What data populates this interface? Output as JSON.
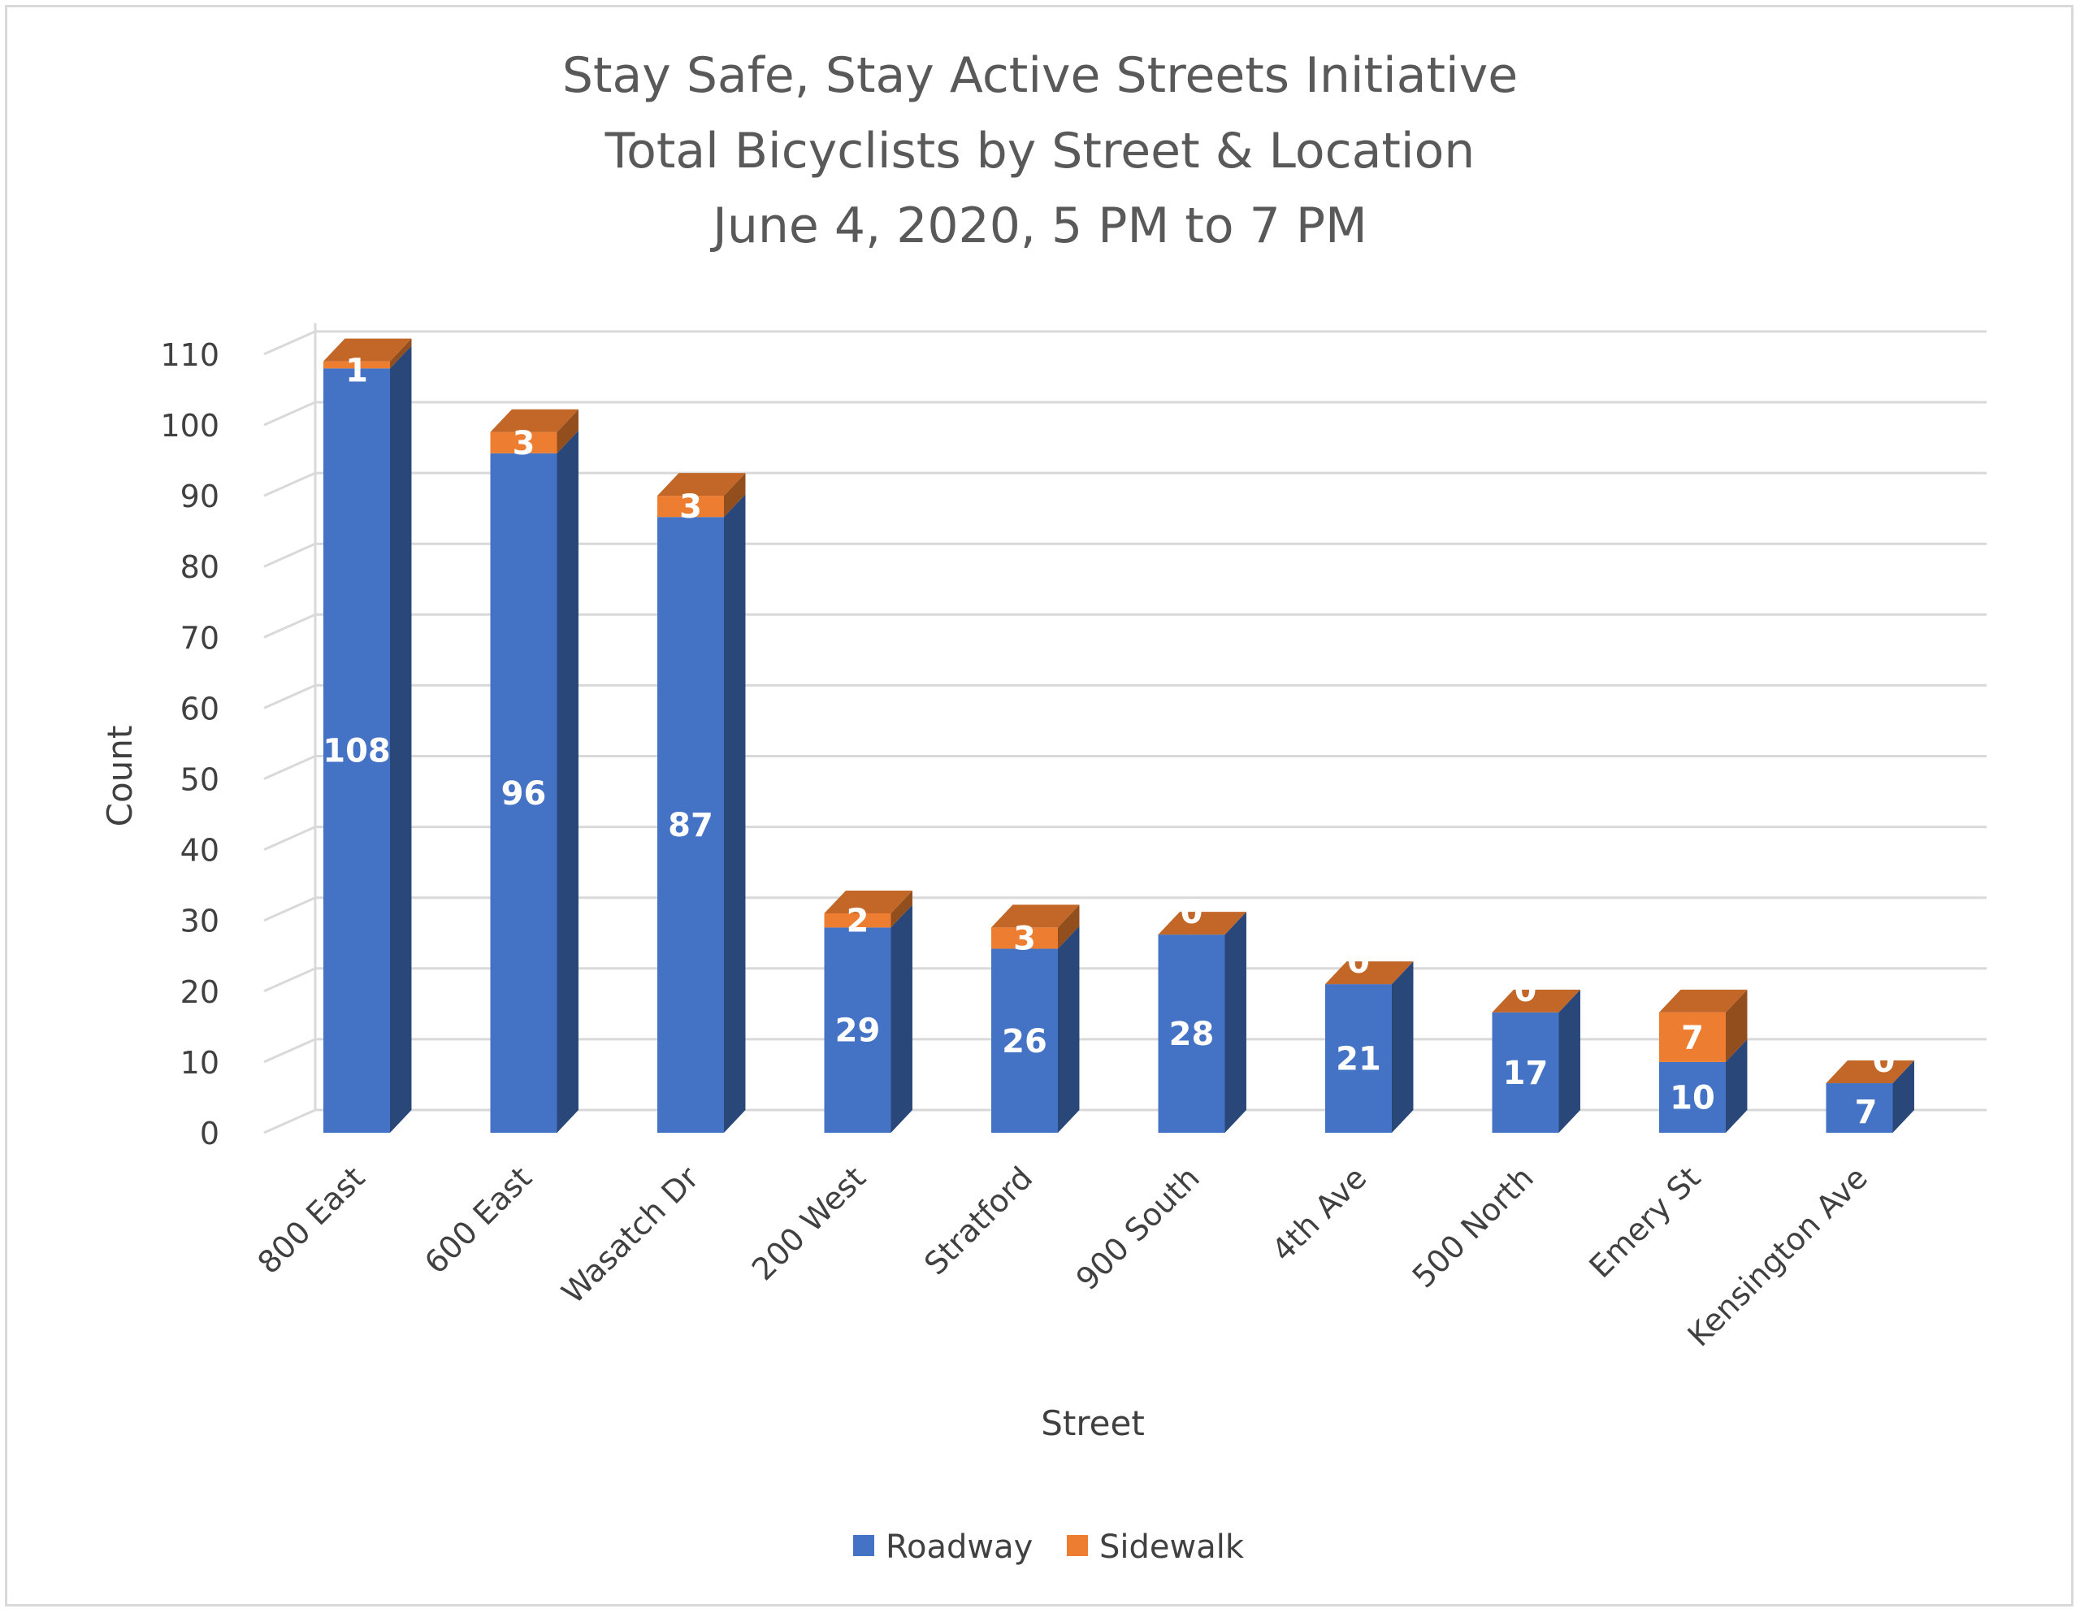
{
  "chart_data": {
    "type": "bar",
    "stacked": true,
    "three_d": true,
    "title": [
      "Stay Safe, Stay Active Streets Initiative",
      "Total Bicyclists by Street & Location",
      "June 4, 2020, 5 PM to 7 PM"
    ],
    "xlabel": "Street",
    "ylabel": "Count",
    "ylim": [
      0,
      110
    ],
    "yticks": [
      0,
      10,
      20,
      30,
      40,
      50,
      60,
      70,
      80,
      90,
      100,
      110
    ],
    "grid": true,
    "legend_position": "bottom",
    "categories": [
      "800 East",
      "600 East",
      "Wasatch Dr",
      "200 West",
      "Stratford",
      "900 South",
      "4th Ave",
      "500 North",
      "Emery St",
      "Kensington Ave"
    ],
    "series": [
      {
        "name": "Roadway",
        "color": "#4472c4",
        "values": [
          108,
          96,
          87,
          29,
          26,
          28,
          21,
          17,
          10,
          7
        ]
      },
      {
        "name": "Sidewalk",
        "color": "#ed7d31",
        "values": [
          1,
          3,
          3,
          2,
          3,
          0,
          0,
          0,
          7,
          0
        ]
      }
    ]
  }
}
